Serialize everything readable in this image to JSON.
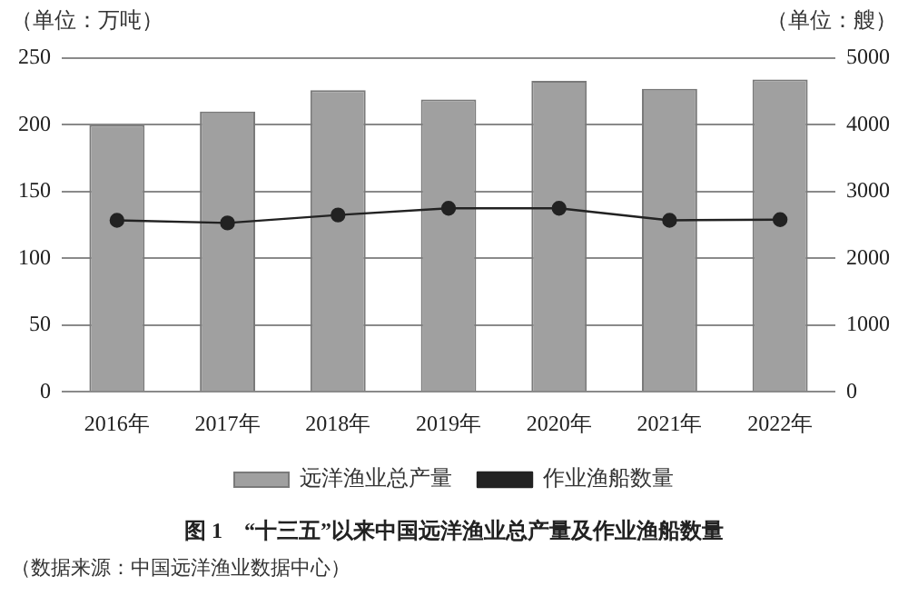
{
  "chart_data": {
    "type": "bar",
    "title": "图 1　“十三五”以来中国远洋渔业总产量及作业渔船数量",
    "ylabel": "（单位：万吨）",
    "y2label": "（单位：艘）",
    "categories": [
      "2016年",
      "2017年",
      "2018年",
      "2019年",
      "2020年",
      "2021年",
      "2022年"
    ],
    "series": [
      {
        "name": "远洋渔业总产量",
        "color": "#a0a0a0",
        "values": [
          200,
          210,
          226,
          219,
          233,
          227,
          234
        ]
      },
      {
        "name": "作业渔船数量",
        "type": "line",
        "axis": "y2",
        "color": "#222222",
        "marker": "circle",
        "values": [
          2570,
          2530,
          2650,
          2750,
          2750,
          2570,
          2580
        ]
      }
    ],
    "ylim": [
      0,
      250
    ],
    "yticks": [
      0,
      50,
      100,
      150,
      200,
      250
    ],
    "y2lim": [
      0,
      5000
    ],
    "y2ticks": [
      0,
      1000,
      2000,
      3000,
      4000,
      5000
    ],
    "grid": "y",
    "legend": "bottom",
    "annotations": [
      "（数据来源：中国远洋渔业数据中心）"
    ]
  }
}
